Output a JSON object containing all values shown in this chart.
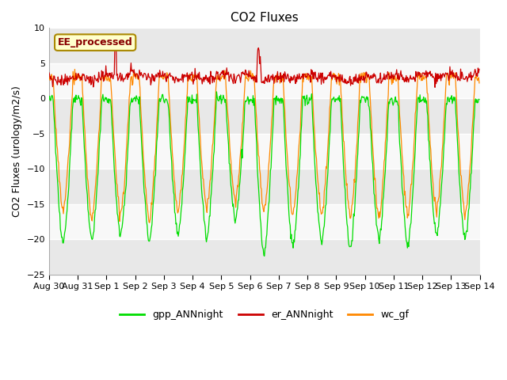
{
  "title": "CO2 Fluxes",
  "ylabel": "CO2 Fluxes (urology/m2/s)",
  "ylim": [
    -25,
    10
  ],
  "yticks": [
    -25,
    -20,
    -15,
    -10,
    -5,
    0,
    5,
    10
  ],
  "n_days": 15,
  "points_per_day": 48,
  "colors": {
    "gpp": "#00dd00",
    "er": "#cc0000",
    "wc": "#ff8800"
  },
  "legend_labels": [
    "gpp_ANNnight",
    "er_ANNnight",
    "wc_gf"
  ],
  "annotation_text": "EE_processed",
  "annotation_color": "#880000",
  "annotation_bg": "#ffffcc",
  "annotation_border": "#aa8800",
  "background_color": "#ffffff",
  "band_colors": [
    "#e8e8e8",
    "#f8f8f8"
  ],
  "xtick_labels": [
    "Aug 30",
    "Aug 31",
    "Sep 1",
    "Sep 2",
    "Sep 3",
    "Sep 4",
    "Sep 5",
    "Sep 6",
    "Sep 7",
    "Sep 8",
    "Sep 9",
    "Sep 10",
    "Sep 11",
    "Sep 12",
    "Sep 13",
    "Sep 14"
  ],
  "figsize": [
    6.4,
    4.8
  ],
  "dpi": 100
}
